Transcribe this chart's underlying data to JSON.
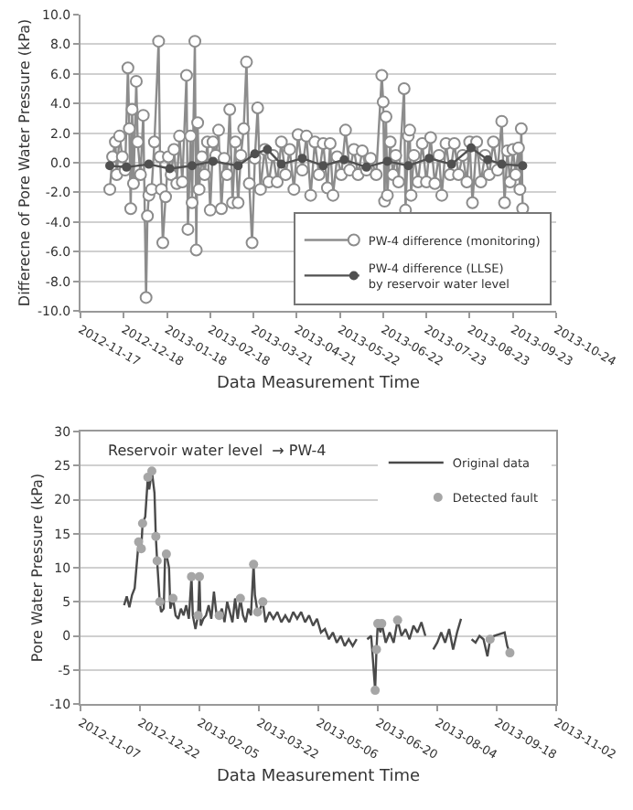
{
  "chart_data": [
    {
      "type": "line",
      "xlabel": "Data Measurement Time",
      "ylabel": "Differecne of Pore Water Pressure (kPa)",
      "xlim": [
        "2012-11-17",
        "2013-10-24"
      ],
      "xticks": [
        "2012-11-17",
        "2012-12-18",
        "2013-01-18",
        "2013-02-18",
        "2013-03-21",
        "2013-04-21",
        "2013-05-22",
        "2013-06-22",
        "2013-07-23",
        "2013-08-23",
        "2013-09-23",
        "2013-10-24"
      ],
      "ylim": [
        -10,
        10
      ],
      "yticks": [
        {
          "value": -10,
          "label": "-10.0"
        },
        {
          "value": -8,
          "label": "-8.0"
        },
        {
          "value": -6,
          "label": "-6.0"
        },
        {
          "value": -4,
          "label": "-4.0"
        },
        {
          "value": -2,
          "label": "-2.0"
        },
        {
          "value": 0,
          "label": "0.0"
        },
        {
          "value": 2,
          "label": "2.0"
        },
        {
          "value": 4,
          "label": "4.0"
        },
        {
          "value": 6,
          "label": "6.0"
        },
        {
          "value": 8,
          "label": "8.0"
        },
        {
          "value": 10,
          "label": "10.0"
        }
      ],
      "grid": "y",
      "legend": "bottom right",
      "series": [
        {
          "name": "PW-4 difference (monitoring)",
          "type": "line",
          "marker": "circle",
          "color": "#8c8c8c",
          "x": [
            "2012-12-08",
            "2012-12-10",
            "2012-12-12",
            "2012-12-13",
            "2012-12-15",
            "2012-12-17",
            "2012-12-19",
            "2012-12-21",
            "2012-12-22",
            "2012-12-23",
            "2012-12-24",
            "2012-12-25",
            "2012-12-27",
            "2012-12-28",
            "2012-12-30",
            "2013-01-01",
            "2013-01-03",
            "2013-01-04",
            "2013-01-05",
            "2013-01-07",
            "2013-01-09",
            "2013-01-12",
            "2013-01-13",
            "2013-01-14",
            "2013-01-15",
            "2013-01-17",
            "2013-01-19",
            "2013-01-21",
            "2013-01-23",
            "2013-01-25",
            "2013-01-27",
            "2013-01-29",
            "2013-02-01",
            "2013-02-02",
            "2013-02-04",
            "2013-02-05",
            "2013-02-07",
            "2013-02-08",
            "2013-02-09",
            "2013-02-10",
            "2013-02-12",
            "2013-02-14",
            "2013-02-16",
            "2013-02-18",
            "2013-02-20",
            "2013-02-22",
            "2013-02-24",
            "2013-02-26",
            "2013-02-28",
            "2013-03-02",
            "2013-03-04",
            "2013-03-06",
            "2013-03-08",
            "2013-03-10",
            "2013-03-12",
            "2013-03-14",
            "2013-03-16",
            "2013-03-18",
            "2013-03-20",
            "2013-03-22",
            "2013-03-24",
            "2013-03-26",
            "2013-03-29",
            "2013-04-01",
            "2013-04-04",
            "2013-04-07",
            "2013-04-10",
            "2013-04-13",
            "2013-04-16",
            "2013-04-19",
            "2013-04-22",
            "2013-04-25",
            "2013-04-28",
            "2013-05-01",
            "2013-05-04",
            "2013-05-07",
            "2013-05-10",
            "2013-05-13",
            "2013-05-15",
            "2013-05-17",
            "2013-05-20",
            "2013-05-23",
            "2013-05-26",
            "2013-05-29",
            "2013-06-01",
            "2013-06-04",
            "2013-06-07",
            "2013-06-10",
            "2013-06-13",
            "2013-06-17",
            "2013-06-21",
            "2013-06-22",
            "2013-06-23",
            "2013-06-24",
            "2013-06-25",
            "2013-06-27",
            "2013-06-29",
            "2013-07-01",
            "2013-07-03",
            "2013-07-07",
            "2013-07-08",
            "2013-07-10",
            "2013-07-11",
            "2013-07-12",
            "2013-07-14",
            "2013-07-17",
            "2013-07-20",
            "2013-07-23",
            "2013-07-26",
            "2013-07-29",
            "2013-08-01",
            "2013-08-03",
            "2013-08-06",
            "2013-08-09",
            "2013-08-12",
            "2013-08-15",
            "2013-08-18",
            "2013-08-21",
            "2013-08-23",
            "2013-08-25",
            "2013-08-28",
            "2013-08-31",
            "2013-09-03",
            "2013-09-06",
            "2013-09-09",
            "2013-09-12",
            "2013-09-15",
            "2013-09-17",
            "2013-09-19",
            "2013-09-21",
            "2013-09-23",
            "2013-09-25",
            "2013-09-27",
            "2013-09-28",
            "2013-09-29",
            "2013-09-30"
          ],
          "values": [
            -1.8,
            0.4,
            1.4,
            -0.8,
            1.8,
            0.4,
            -0.5,
            6.4,
            2.3,
            -3.1,
            3.6,
            -1.4,
            5.5,
            1.4,
            -0.8,
            3.2,
            -9.1,
            -3.6,
            -2.2,
            -1.8,
            1.4,
            8.2,
            0.4,
            -1.8,
            -5.4,
            -2.3,
            0.4,
            -0.8,
            0.9,
            -1.4,
            1.8,
            -1.3,
            5.9,
            -4.5,
            1.8,
            -2.7,
            8.2,
            -5.9,
            2.7,
            -1.8,
            0.4,
            -0.8,
            1.4,
            -3.2,
            1.4,
            0.5,
            2.2,
            -3.1,
            0.3,
            -0.8,
            3.6,
            -2.7,
            1.4,
            -2.7,
            0.5,
            2.3,
            6.8,
            -1.4,
            -5.4,
            0.3,
            3.7,
            -1.8,
            0.9,
            -1.3,
            0.5,
            -1.3,
            1.4,
            -0.8,
            0.9,
            -1.8,
            1.9,
            -0.5,
            1.8,
            -2.2,
            1.4,
            -0.8,
            1.3,
            -1.7,
            1.3,
            -2.2,
            0.4,
            -0.8,
            2.2,
            -0.5,
            0.9,
            -0.8,
            0.8,
            -0.5,
            0.3,
            -0.8,
            5.9,
            4.1,
            -2.6,
            3.1,
            -2.2,
            1.4,
            -0.8,
            0.5,
            -1.3,
            5.0,
            -3.2,
            1.8,
            2.2,
            -2.2,
            0.5,
            -1.3,
            1.3,
            -1.3,
            1.7,
            -1.4,
            0.5,
            -2.2,
            1.3,
            -0.8,
            1.3,
            -0.8,
            0.5,
            -1.3,
            1.4,
            -2.7,
            1.4,
            -1.3,
            0.5,
            -0.8,
            1.4,
            -0.5,
            2.8,
            -2.7,
            0.8,
            -1.3,
            0.9,
            -0.8,
            1.0,
            -1.8,
            2.3,
            -3.1
          ]
        },
        {
          "name": "PW-4 difference (LLSE)\nby reservoir water level",
          "type": "line",
          "marker": "circle",
          "color": "#505050",
          "x": [
            "2012-12-08",
            "2012-12-20",
            "2013-01-05",
            "2013-01-20",
            "2013-02-05",
            "2013-02-20",
            "2013-03-10",
            "2013-03-22",
            "2013-03-31",
            "2013-04-10",
            "2013-04-25",
            "2013-05-10",
            "2013-05-25",
            "2013-06-10",
            "2013-06-25",
            "2013-07-10",
            "2013-07-25",
            "2013-08-10",
            "2013-08-24",
            "2013-09-05",
            "2013-09-15",
            "2013-09-30"
          ],
          "values": [
            -0.2,
            -0.3,
            -0.1,
            -0.4,
            -0.2,
            0.1,
            -0.2,
            0.6,
            0.9,
            -0.1,
            0.3,
            -0.2,
            0.2,
            -0.3,
            0.1,
            -0.2,
            0.3,
            -0.1,
            1.0,
            0.2,
            -0.1,
            -0.2
          ]
        }
      ]
    },
    {
      "type": "line",
      "xlabel": "Data Measurement Time",
      "ylabel": "Pore Water Pressure (kPa)",
      "xlim": [
        "2012-11-07",
        "2013-11-02"
      ],
      "xticks": [
        "2012-11-07",
        "2012-12-22",
        "2013-02-05",
        "2013-03-22",
        "2013-05-06",
        "2013-06-20",
        "2013-08-04",
        "2013-09-18",
        "2013-11-02"
      ],
      "ylim": [
        -10,
        30
      ],
      "yticks": [
        -10,
        -5,
        0,
        5,
        10,
        15,
        20,
        25,
        30
      ],
      "grid": "y",
      "legend": "top right",
      "annotations": [
        "Reservoir water level  → PW-4"
      ],
      "series": [
        {
          "name": "Detected fault",
          "type": "scatter",
          "marker": "circle",
          "color": "#a6a6a6",
          "x": [
            "2012-12-21",
            "2012-12-23",
            "2012-12-24",
            "2012-12-28",
            "2012-12-31",
            "2013-01-03",
            "2013-01-04",
            "2013-01-06",
            "2013-01-11",
            "2013-01-16",
            "2013-01-30",
            "2013-02-04",
            "2013-02-05",
            "2013-02-20",
            "2013-03-08",
            "2013-03-18",
            "2013-03-21",
            "2013-03-25",
            "2013-06-18",
            "2013-06-19",
            "2013-06-20",
            "2013-06-23",
            "2013-07-05",
            "2013-09-13",
            "2013-09-28"
          ],
          "values": [
            13.8,
            12.8,
            16.5,
            23.3,
            24.2,
            14.6,
            11,
            5,
            12,
            5.5,
            8.7,
            3,
            8.7,
            3,
            5.5,
            10.5,
            3.5,
            5,
            -8,
            -2,
            1.8,
            1.8,
            2.3,
            -0.5,
            -2.5
          ]
        },
        {
          "name": "Original data",
          "type": "line",
          "marker": "none",
          "color": "#4a4a4a",
          "x": [
            "2012-12-10",
            "2012-12-12",
            "2012-12-14",
            "2012-12-16",
            "2012-12-18",
            "2012-12-21",
            "2012-12-23",
            "2012-12-24",
            "2012-12-26",
            "2012-12-28",
            "2012-12-29",
            "2012-12-31",
            "2013-01-02",
            "2013-01-03",
            "2013-01-04",
            "2013-01-06",
            "2013-01-07",
            "2013-01-09",
            "2013-01-10",
            "2013-01-11",
            "2013-01-13",
            "2013-01-14",
            "2013-01-16",
            "2013-01-18",
            "2013-01-20",
            "2013-01-22",
            "2013-01-24",
            "2013-01-26",
            "2013-01-28",
            "2013-01-30",
            "2013-01-31",
            "2013-02-02",
            "2013-02-04",
            "2013-02-05",
            "2013-02-06",
            "2013-02-08",
            "2013-02-10",
            "2013-02-12",
            "2013-02-14",
            "2013-02-16",
            "2013-02-18",
            "2013-02-20",
            "2013-02-22",
            "2013-02-24",
            "2013-02-26",
            "2013-02-28",
            "2013-03-02",
            "2013-03-04",
            "2013-03-06",
            "2013-03-08",
            "2013-03-10",
            "2013-03-12",
            "2013-03-14",
            "2013-03-16",
            "2013-03-18",
            "2013-03-19",
            "2013-03-21",
            "2013-03-23",
            "2013-03-25",
            "2013-03-27",
            "2013-03-30",
            "2013-04-02",
            "2013-04-05",
            "2013-04-08",
            "2013-04-11",
            "2013-04-14",
            "2013-04-17",
            "2013-04-20",
            "2013-04-23",
            "2013-04-26",
            "2013-04-29",
            "2013-05-02",
            "2013-05-05",
            "2013-05-08",
            "2013-05-11",
            "2013-05-14",
            "2013-05-17",
            "2013-05-20",
            "2013-05-23",
            "2013-05-26",
            "2013-05-29",
            "2013-06-01",
            "2013-06-04",
            "2013-06-08",
            "2013-06-12",
            "2013-06-15",
            "2013-06-18",
            "2013-06-19",
            "2013-06-20",
            "2013-06-22",
            "2013-06-23",
            "2013-06-26",
            "2013-06-29",
            "2013-07-02",
            "2013-07-05",
            "2013-07-08",
            "2013-07-11",
            "2013-07-14",
            "2013-07-17",
            "2013-07-20",
            "2013-07-23",
            "2013-07-26",
            "2013-07-29",
            "2013-08-01",
            "2013-08-04",
            "2013-08-07",
            "2013-08-10",
            "2013-08-13",
            "2013-08-16",
            "2013-08-19",
            "2013-08-22",
            "2013-08-26",
            "2013-08-30",
            "2013-09-02",
            "2013-09-05",
            "2013-09-08",
            "2013-09-11",
            "2013-09-13",
            "2013-09-16",
            "2013-09-24",
            "2013-09-26",
            "2013-09-28"
          ],
          "values": [
            4.5,
            5.8,
            4.2,
            6,
            7,
            13.8,
            12.8,
            16.5,
            17.5,
            23.3,
            21.5,
            24.2,
            21,
            14.6,
            11,
            5,
            3.5,
            4,
            11.5,
            12,
            10,
            4,
            5.5,
            3,
            2.5,
            4,
            3,
            4.5,
            2.5,
            8.7,
            3,
            1,
            3,
            8.7,
            1.5,
            2.5,
            3,
            4.5,
            2.5,
            6.5,
            3,
            3,
            4,
            2,
            5,
            3.5,
            2,
            5.5,
            2.5,
            5.5,
            3,
            2,
            4,
            3,
            10.5,
            6,
            3.5,
            4,
            5,
            2,
            3.5,
            2.5,
            3.5,
            2,
            3,
            2,
            3.5,
            2.5,
            3.5,
            2,
            3,
            1.5,
            2.5,
            0.5,
            1,
            -0.5,
            0.5,
            -1,
            0,
            -1.5,
            -0.5,
            -1.5,
            -0.5,
            null,
            -0.5,
            0,
            -8,
            -2,
            1.8,
            0.5,
            1.8,
            -1,
            0.5,
            -1,
            2.3,
            0,
            1,
            -0.5,
            1.5,
            0.5,
            2,
            0,
            null,
            -2,
            -1,
            0.5,
            -1,
            1,
            -2,
            0.5,
            2.5,
            null,
            -0.5,
            -1,
            0,
            -0.5,
            -3,
            -0.5,
            0,
            0.5,
            -1.5,
            -2.5
          ]
        }
      ]
    }
  ]
}
